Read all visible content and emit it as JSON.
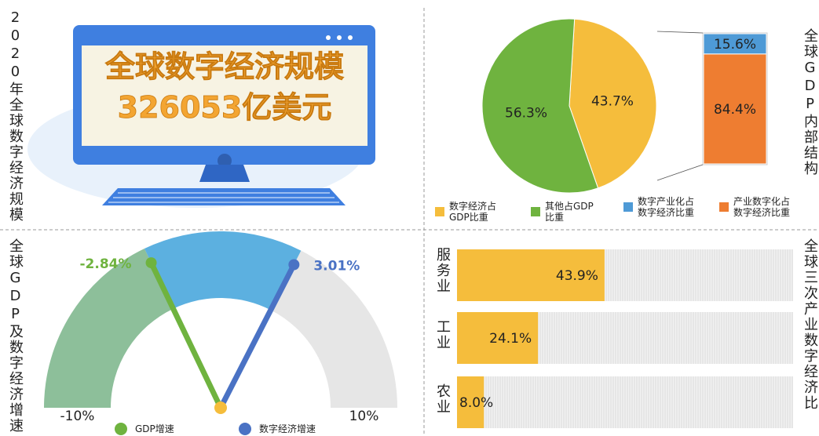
{
  "banner": {
    "side_title": "2020年全球数字经济规模",
    "heading": "全球数字经济规模",
    "amount": "326053亿美元"
  },
  "chart_data": [
    {
      "type": "pie",
      "title": "全球GDP内部结构",
      "categories": [
        "数字经济占GDP比重",
        "其他占GDP比重"
      ],
      "values": [
        43.7,
        56.3
      ],
      "value_labels": [
        "43.7%",
        "56.3%"
      ],
      "colors": [
        "#f5bd3c",
        "#6fb33f"
      ]
    },
    {
      "type": "stacked-bar",
      "series": [
        {
          "name": "数字产业化占数字经济比重",
          "color": "#4e9ad6",
          "values": [
            15.6
          ],
          "value_labels": [
            "15.6%"
          ]
        },
        {
          "name": "产业数字化占数字经济比重",
          "color": "#ee7d31",
          "values": [
            84.4
          ],
          "value_labels": [
            "84.4%"
          ]
        }
      ],
      "ylim": [
        0,
        100
      ]
    },
    {
      "type": "gauge",
      "title": "全球GDP及数字经济增速",
      "series": [
        {
          "name": "GDP增速",
          "color": "#6fb33f",
          "values": [
            -2.84
          ],
          "value_labels": [
            "-2.84%"
          ]
        },
        {
          "name": "数字经济增速",
          "color": "#4a72c4",
          "values": [
            3.01
          ],
          "value_labels": [
            "3.01%"
          ]
        }
      ],
      "xlim": [
        -10,
        10
      ],
      "xticks": [
        {
          "value": -10,
          "label": "-10%"
        },
        {
          "value": 10,
          "label": "10%"
        }
      ]
    },
    {
      "type": "hbar",
      "title": "全球三次产业数字经济比",
      "categories": [
        "服务业",
        "工业",
        "农业"
      ],
      "values": [
        43.9,
        24.1,
        8.0
      ],
      "value_labels": [
        "43.9%",
        "24.1%",
        "8.0%"
      ],
      "color": "#f5bd3c",
      "xlim": [
        0,
        100
      ]
    }
  ]
}
